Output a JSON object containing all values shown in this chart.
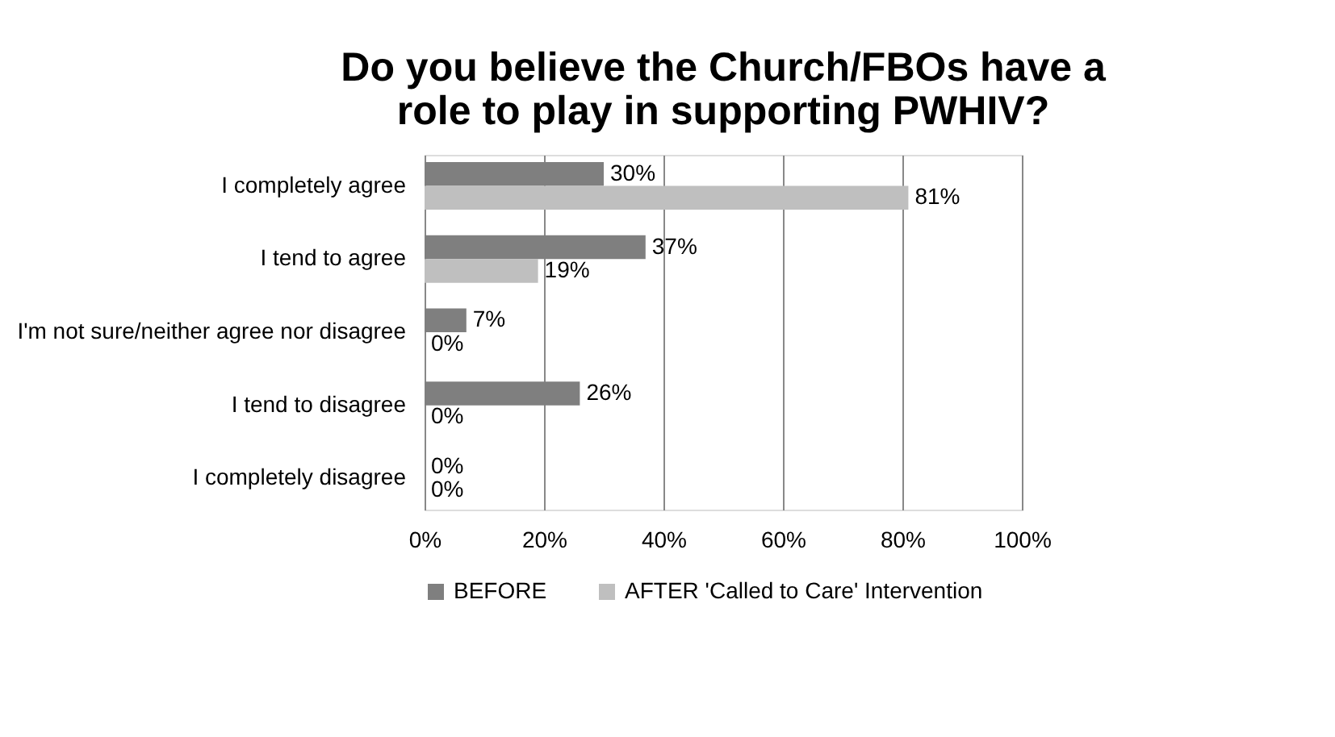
{
  "chart_data": {
    "type": "bar",
    "orientation": "horizontal",
    "title": "Do you believe the Church/FBOs have a role to play in supporting PWHIV?",
    "categories": [
      "I completely agree",
      "I tend to agree",
      "I'm not sure/neither agree nor disagree",
      "I tend to disagree",
      "I completely disagree"
    ],
    "series": [
      {
        "name": "BEFORE",
        "color": "#7f7f7f",
        "values": [
          30,
          37,
          7,
          26,
          0
        ],
        "value_labels": [
          "30%",
          "37%",
          "7%",
          "26%",
          "0%"
        ]
      },
      {
        "name": "AFTER 'Called to Care' Intervention",
        "color": "#bfbfbf",
        "values": [
          81,
          19,
          0,
          0,
          0
        ],
        "value_labels": [
          "81%",
          "19%",
          "0%",
          "0%",
          "0%"
        ]
      }
    ],
    "xlim": [
      0,
      100
    ],
    "xticks": [
      {
        "value": 0,
        "label": "0%"
      },
      {
        "value": 20,
        "label": "20%"
      },
      {
        "value": 40,
        "label": "40%"
      },
      {
        "value": 60,
        "label": "60%"
      },
      {
        "value": 80,
        "label": "80%"
      },
      {
        "value": 100,
        "label": "100%"
      }
    ],
    "grid": "x",
    "legend": "bottom"
  }
}
